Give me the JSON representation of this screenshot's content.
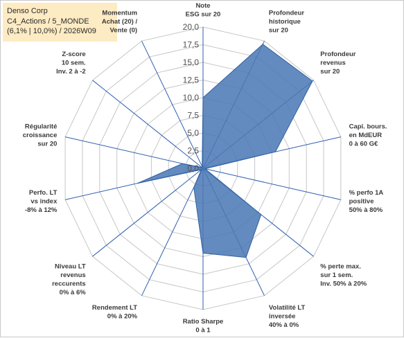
{
  "info": {
    "line1": "Denso Corp",
    "line2": "C4_Actions / 5_MONDE",
    "line3": "(6,1% | 10,0%) / 2026W09"
  },
  "colors": {
    "fill": "#4a78b4",
    "stroke": "#2f5f9f",
    "axis": "#2e5fae",
    "grid": "#c6c6c6",
    "info_bg": "#fdebc3"
  },
  "chart_data": {
    "type": "radar",
    "rlim": [
      0,
      20
    ],
    "ticks": [
      "0,0",
      "2,5",
      "5,0",
      "7,5",
      "10,0",
      "12,5",
      "15,0",
      "17,5",
      "20,0"
    ],
    "categories": [
      [
        "Note",
        "ESG sur 20"
      ],
      [
        "Profondeur",
        "historique",
        "sur 20"
      ],
      [
        "Profondeur",
        "revenus",
        "sur 20"
      ],
      [
        "Capi. bours.",
        "en MdEUR",
        "0 à 60 G€"
      ],
      [
        "% perfo 1A",
        "positive",
        "50% à 80%"
      ],
      [
        "% perte max.",
        "sur 1 sem.",
        "Inv. 50% à 20%"
      ],
      [
        "Volatilité LT",
        "inversée",
        "40% à 0%"
      ],
      [
        "Ratio Sharpe",
        "0 à 1"
      ],
      [
        "Rendement LT",
        "0% à 20%"
      ],
      [
        "Niveau LT",
        "revenus",
        "reccurents",
        "0% à 6%"
      ],
      [
        "Perfo. LT",
        "vs index",
        "-8% à 12%"
      ],
      [
        "Régularité",
        "croissance",
        "sur 20"
      ],
      [
        "Z-score",
        "10 sem.",
        "Inv. 2 à -2"
      ],
      [
        "Momentum",
        "Achat (20) /",
        "Vente (0)"
      ]
    ],
    "series": [
      {
        "values": [
          10,
          19.5,
          19.8,
          10.5,
          0.3,
          10.5,
          14,
          12,
          3,
          0.3,
          9.5,
          3,
          0.2,
          0.3
        ]
      }
    ],
    "grid": true
  }
}
